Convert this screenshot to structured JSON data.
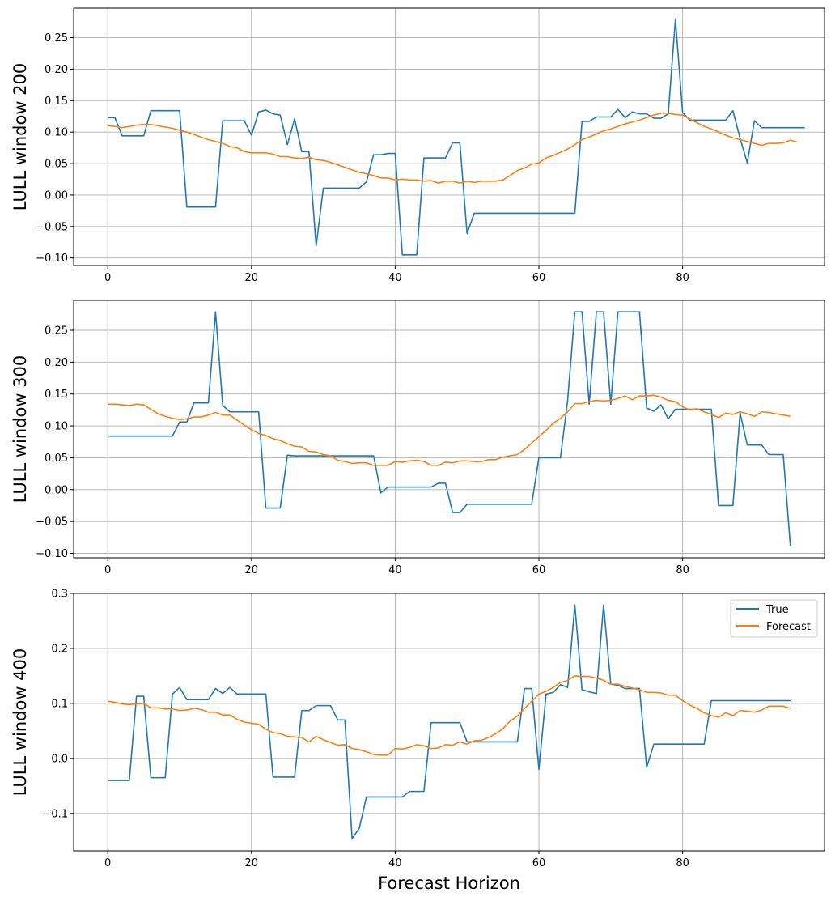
{
  "figure": {
    "xlabel": "Forecast Horizon"
  },
  "colors": {
    "true": "#1f77b4",
    "forecast": "#ff7f0e"
  },
  "legend": {
    "labels": [
      "True",
      "Forecast"
    ],
    "placement": "top-right"
  },
  "chart_data": [
    {
      "type": "line",
      "ylabel": "LULL window 200",
      "xlim": [
        -4.75,
        99.75
      ],
      "ylim": [
        -0.112,
        0.297
      ],
      "xticks": [
        0,
        20,
        40,
        60,
        80
      ],
      "xtick_labels": [
        "0",
        "20",
        "40",
        "60",
        "80"
      ],
      "yticks": [
        -0.1,
        -0.05,
        0.0,
        0.05,
        0.1,
        0.15,
        0.2,
        0.25
      ],
      "ytick_labels": [
        "−0.10",
        "−0.05",
        "0.00",
        "0.05",
        "0.10",
        "0.15",
        "0.20",
        "0.25"
      ],
      "grid": true,
      "series": [
        {
          "name": "True",
          "values": [
            0.123,
            0.123,
            0.094,
            0.094,
            0.094,
            0.094,
            0.134,
            0.134,
            0.134,
            0.134,
            0.134,
            -0.019,
            -0.019,
            -0.019,
            -0.019,
            -0.019,
            0.118,
            0.118,
            0.118,
            0.118,
            0.095,
            0.132,
            0.135,
            0.129,
            0.127,
            0.08,
            0.121,
            0.069,
            0.069,
            -0.081,
            0.011,
            0.011,
            0.011,
            0.011,
            0.011,
            0.011,
            0.021,
            0.064,
            0.064,
            0.066,
            0.066,
            -0.095,
            -0.095,
            -0.095,
            0.059,
            0.059,
            0.059,
            0.059,
            0.083,
            0.083,
            -0.061,
            -0.029,
            -0.029,
            -0.029,
            -0.029,
            -0.029,
            -0.029,
            -0.029,
            -0.029,
            -0.029,
            -0.029,
            -0.029,
            -0.029,
            -0.029,
            -0.029,
            -0.029,
            0.117,
            0.117,
            0.124,
            0.124,
            0.124,
            0.136,
            0.123,
            0.132,
            0.129,
            0.129,
            0.122,
            0.122,
            0.129,
            0.279,
            0.131,
            0.119,
            0.119,
            0.119,
            0.119,
            0.119,
            0.119,
            0.134,
            0.09,
            0.051,
            0.118,
            0.107,
            0.107,
            0.107,
            0.107,
            0.107,
            0.107,
            0.107
          ]
        },
        {
          "name": "Forecast",
          "values": [
            0.11,
            0.109,
            0.107,
            0.109,
            0.111,
            0.112,
            0.112,
            0.11,
            0.108,
            0.106,
            0.103,
            0.1,
            0.096,
            0.092,
            0.088,
            0.085,
            0.082,
            0.077,
            0.075,
            0.069,
            0.067,
            0.067,
            0.067,
            0.065,
            0.061,
            0.061,
            0.059,
            0.058,
            0.06,
            0.056,
            0.055,
            0.052,
            0.048,
            0.044,
            0.04,
            0.036,
            0.034,
            0.031,
            0.027,
            0.027,
            0.024,
            0.025,
            0.024,
            0.024,
            0.022,
            0.023,
            0.019,
            0.022,
            0.022,
            0.019,
            0.022,
            0.02,
            0.022,
            0.022,
            0.022,
            0.024,
            0.031,
            0.039,
            0.043,
            0.049,
            0.051,
            0.059,
            0.063,
            0.068,
            0.073,
            0.08,
            0.088,
            0.092,
            0.097,
            0.102,
            0.105,
            0.109,
            0.113,
            0.116,
            0.119,
            0.123,
            0.127,
            0.13,
            0.13,
            0.128,
            0.127,
            0.121,
            0.115,
            0.109,
            0.105,
            0.1,
            0.095,
            0.091,
            0.088,
            0.085,
            0.082,
            0.079,
            0.082,
            0.082,
            0.083,
            0.087,
            0.084
          ]
        }
      ]
    },
    {
      "type": "line",
      "ylabel": "LULL window 300",
      "xlim": [
        -4.75,
        99.75
      ],
      "ylim": [
        -0.107,
        0.297
      ],
      "xticks": [
        0,
        20,
        40,
        60,
        80
      ],
      "xtick_labels": [
        "0",
        "20",
        "40",
        "60",
        "80"
      ],
      "yticks": [
        -0.1,
        -0.05,
        0.0,
        0.05,
        0.1,
        0.15,
        0.2,
        0.25
      ],
      "ytick_labels": [
        "−0.10",
        "−0.05",
        "0.00",
        "0.05",
        "0.10",
        "0.15",
        "0.20",
        "0.25"
      ],
      "grid": true,
      "series": [
        {
          "name": "True",
          "values": [
            0.084,
            0.084,
            0.084,
            0.084,
            0.084,
            0.084,
            0.084,
            0.084,
            0.084,
            0.084,
            0.106,
            0.106,
            0.136,
            0.136,
            0.136,
            0.279,
            0.132,
            0.122,
            0.122,
            0.122,
            0.122,
            0.122,
            -0.029,
            -0.029,
            -0.029,
            0.054,
            0.053,
            0.053,
            0.053,
            0.053,
            0.053,
            0.053,
            0.053,
            0.053,
            0.053,
            0.053,
            0.053,
            0.053,
            -0.005,
            0.004,
            0.004,
            0.004,
            0.004,
            0.004,
            0.004,
            0.004,
            0.01,
            0.01,
            -0.036,
            -0.036,
            -0.023,
            -0.023,
            -0.023,
            -0.023,
            -0.023,
            -0.023,
            -0.023,
            -0.023,
            -0.023,
            -0.023,
            0.05,
            0.05,
            0.05,
            0.05,
            0.14,
            0.279,
            0.279,
            0.134,
            0.279,
            0.279,
            0.134,
            0.279,
            0.279,
            0.279,
            0.279,
            0.128,
            0.123,
            0.133,
            0.111,
            0.126,
            0.126,
            0.126,
            0.126,
            0.126,
            0.126,
            -0.025,
            -0.025,
            -0.025,
            0.12,
            0.07,
            0.07,
            0.07,
            0.055,
            0.055,
            0.055,
            -0.089
          ]
        },
        {
          "name": "Forecast",
          "values": [
            0.134,
            0.134,
            0.133,
            0.132,
            0.134,
            0.133,
            0.126,
            0.119,
            0.115,
            0.112,
            0.11,
            0.111,
            0.114,
            0.114,
            0.117,
            0.121,
            0.117,
            0.117,
            0.109,
            0.101,
            0.094,
            0.088,
            0.085,
            0.08,
            0.077,
            0.072,
            0.068,
            0.067,
            0.06,
            0.059,
            0.055,
            0.053,
            0.046,
            0.044,
            0.041,
            0.042,
            0.042,
            0.038,
            0.038,
            0.038,
            0.044,
            0.043,
            0.045,
            0.046,
            0.044,
            0.038,
            0.038,
            0.043,
            0.042,
            0.045,
            0.045,
            0.044,
            0.044,
            0.047,
            0.047,
            0.051,
            0.053,
            0.055,
            0.063,
            0.073,
            0.083,
            0.093,
            0.104,
            0.112,
            0.122,
            0.135,
            0.135,
            0.138,
            0.14,
            0.139,
            0.14,
            0.143,
            0.147,
            0.141,
            0.147,
            0.147,
            0.148,
            0.145,
            0.14,
            0.138,
            0.13,
            0.125,
            0.127,
            0.122,
            0.118,
            0.113,
            0.12,
            0.118,
            0.122,
            0.119,
            0.115,
            0.122,
            0.121,
            0.119,
            0.117,
            0.115
          ]
        }
      ]
    },
    {
      "type": "line",
      "ylabel": "LULL window 400",
      "xlabel": "Forecast Horizon",
      "xlim": [
        -4.75,
        99.75
      ],
      "ylim": [
        -0.168,
        0.3
      ],
      "xticks": [
        0,
        20,
        40,
        60,
        80
      ],
      "xtick_labels": [
        "0",
        "20",
        "40",
        "60",
        "80"
      ],
      "yticks": [
        -0.1,
        0.0,
        0.1,
        0.2,
        0.3
      ],
      "ytick_labels": [
        "−0.1",
        "0.0",
        "0.1",
        "0.2",
        "0.3"
      ],
      "grid": true,
      "legend": true,
      "series": [
        {
          "name": "True",
          "values": [
            -0.04,
            -0.04,
            -0.04,
            -0.04,
            0.113,
            0.113,
            -0.035,
            -0.035,
            -0.035,
            0.117,
            0.129,
            0.107,
            0.107,
            0.107,
            0.107,
            0.127,
            0.118,
            0.129,
            0.117,
            0.117,
            0.117,
            0.117,
            0.117,
            -0.034,
            -0.034,
            -0.034,
            -0.034,
            0.087,
            0.087,
            0.096,
            0.096,
            0.096,
            0.07,
            0.07,
            -0.146,
            -0.127,
            -0.07,
            -0.07,
            -0.07,
            -0.07,
            -0.07,
            -0.07,
            -0.06,
            -0.06,
            -0.06,
            0.065,
            0.065,
            0.065,
            0.065,
            0.065,
            0.03,
            0.03,
            0.03,
            0.03,
            0.03,
            0.03,
            0.03,
            0.03,
            0.127,
            0.127,
            -0.02,
            0.117,
            0.12,
            0.134,
            0.129,
            0.279,
            0.125,
            0.121,
            0.118,
            0.279,
            0.135,
            0.133,
            0.127,
            0.127,
            0.127,
            -0.016,
            0.026,
            0.026,
            0.026,
            0.026,
            0.026,
            0.026,
            0.026,
            0.026,
            0.105,
            0.105,
            0.105,
            0.105,
            0.105,
            0.105,
            0.105,
            0.105,
            0.105,
            0.105,
            0.105,
            0.105
          ]
        },
        {
          "name": "Forecast",
          "values": [
            0.104,
            0.102,
            0.099,
            0.098,
            0.099,
            0.1,
            0.092,
            0.092,
            0.09,
            0.09,
            0.087,
            0.088,
            0.091,
            0.089,
            0.084,
            0.084,
            0.079,
            0.079,
            0.071,
            0.066,
            0.064,
            0.062,
            0.053,
            0.047,
            0.045,
            0.04,
            0.039,
            0.038,
            0.03,
            0.04,
            0.034,
            0.029,
            0.024,
            0.025,
            0.018,
            0.016,
            0.012,
            0.007,
            0.006,
            0.006,
            0.018,
            0.017,
            0.02,
            0.025,
            0.023,
            0.018,
            0.019,
            0.025,
            0.024,
            0.03,
            0.026,
            0.032,
            0.033,
            0.038,
            0.045,
            0.054,
            0.068,
            0.077,
            0.091,
            0.104,
            0.117,
            0.122,
            0.129,
            0.138,
            0.142,
            0.15,
            0.149,
            0.149,
            0.146,
            0.142,
            0.135,
            0.135,
            0.131,
            0.128,
            0.125,
            0.12,
            0.12,
            0.119,
            0.115,
            0.115,
            0.105,
            0.097,
            0.091,
            0.083,
            0.078,
            0.075,
            0.083,
            0.078,
            0.087,
            0.086,
            0.084,
            0.088,
            0.095,
            0.095,
            0.095,
            0.091
          ]
        }
      ]
    }
  ]
}
